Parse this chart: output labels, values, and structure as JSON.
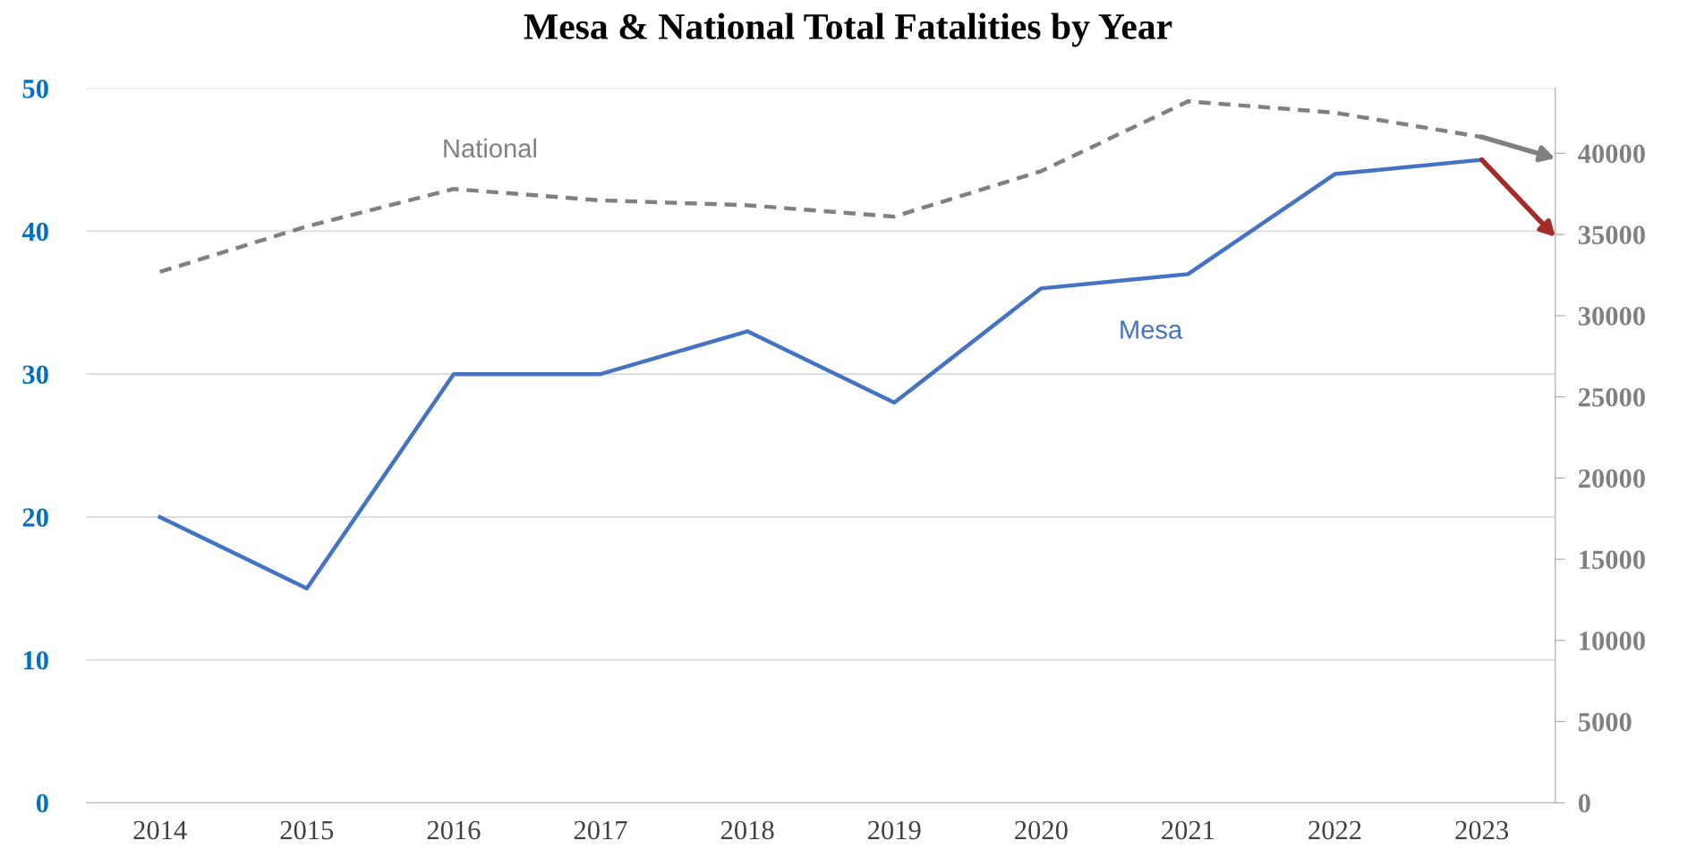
{
  "chart_data": {
    "type": "line",
    "title": "Mesa & National Total Fatalities by Year",
    "x": [
      2014,
      2015,
      2016,
      2017,
      2018,
      2019,
      2020,
      2021,
      2022,
      2023
    ],
    "xlim": [
      2013.5,
      2023.5
    ],
    "xticks": [
      2014,
      2015,
      2016,
      2017,
      2018,
      2019,
      2020,
      2021,
      2022,
      2023
    ],
    "ylim": [
      0,
      50
    ],
    "yticks": [
      0,
      10,
      20,
      30,
      40,
      50
    ],
    "y2lim": [
      0,
      44000
    ],
    "y2ticks": [
      0,
      5000,
      10000,
      15000,
      20000,
      25000,
      30000,
      35000,
      40000
    ],
    "grid": "y",
    "legend": false,
    "marker": "none",
    "series": [
      {
        "name": "Mesa",
        "color": "#4472c4",
        "line_style": "solid",
        "values": [
          20,
          15,
          30,
          30,
          33,
          28,
          36,
          37,
          44,
          45
        ]
      },
      {
        "name": "National",
        "color": "#808080",
        "line_style": "dashed",
        "axis": "y2",
        "values": [
          32700,
          35500,
          37800,
          37100,
          36800,
          36100,
          38900,
          43200,
          42500,
          41000
        ]
      }
    ]
  }
}
